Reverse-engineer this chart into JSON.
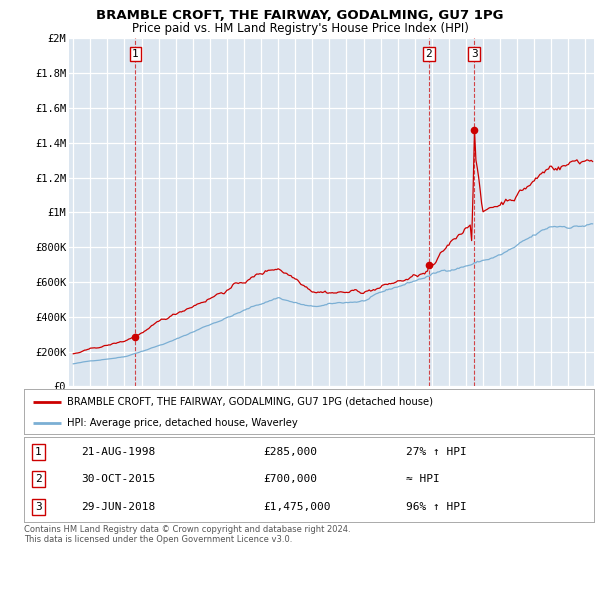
{
  "title": "BRAMBLE CROFT, THE FAIRWAY, GODALMING, GU7 1PG",
  "subtitle": "Price paid vs. HM Land Registry's House Price Index (HPI)",
  "ylim": [
    0,
    2000000
  ],
  "yticks": [
    0,
    200000,
    400000,
    600000,
    800000,
    1000000,
    1200000,
    1400000,
    1600000,
    1800000,
    2000000
  ],
  "ytick_labels": [
    "£0",
    "£200K",
    "£400K",
    "£600K",
    "£800K",
    "£1M",
    "£1.2M",
    "£1.4M",
    "£1.6M",
    "£1.8M",
    "£2M"
  ],
  "plot_bg_color": "#dce6f0",
  "grid_color": "#ffffff",
  "hpi_line_color": "#7bafd4",
  "price_line_color": "#cc0000",
  "sale_marker_color": "#cc0000",
  "sale_points": [
    {
      "date": 1998.64,
      "price": 285000,
      "label": "1"
    },
    {
      "date": 2015.83,
      "price": 700000,
      "label": "2"
    },
    {
      "date": 2018.49,
      "price": 1475000,
      "label": "3"
    }
  ],
  "vline_dates": [
    1998.64,
    2015.83,
    2018.49
  ],
  "legend_entries": [
    "BRAMBLE CROFT, THE FAIRWAY, GODALMING, GU7 1PG (detached house)",
    "HPI: Average price, detached house, Waverley"
  ],
  "table_rows": [
    {
      "num": "1",
      "date": "21-AUG-1998",
      "price": "£285,000",
      "change": "27% ↑ HPI"
    },
    {
      "num": "2",
      "date": "30-OCT-2015",
      "price": "£700,000",
      "change": "≈ HPI"
    },
    {
      "num": "3",
      "date": "29-JUN-2018",
      "price": "£1,475,000",
      "change": "96% ↑ HPI"
    }
  ],
  "footnote": "Contains HM Land Registry data © Crown copyright and database right 2024.\nThis data is licensed under the Open Government Licence v3.0.",
  "xmin": 1994.75,
  "xmax": 2025.5
}
